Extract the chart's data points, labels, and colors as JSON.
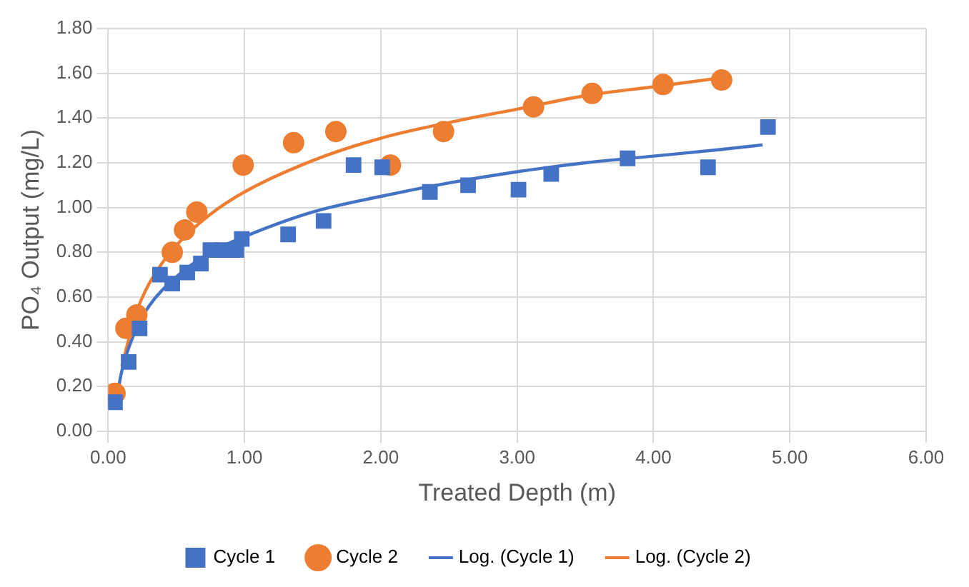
{
  "chart_data": {
    "type": "scatter",
    "xlabel": "Treated Depth (m)",
    "ylabel": "PO₄ Output (mg/L)",
    "xlim": [
      0,
      6
    ],
    "ylim": [
      0,
      1.8
    ],
    "xticks": [
      {
        "value": 0,
        "label": "0.00"
      },
      {
        "value": 1,
        "label": "1.00"
      },
      {
        "value": 2,
        "label": "2.00"
      },
      {
        "value": 3,
        "label": "3.00"
      },
      {
        "value": 4,
        "label": "4.00"
      },
      {
        "value": 5,
        "label": "5.00"
      },
      {
        "value": 6,
        "label": "6.00"
      }
    ],
    "yticks": [
      {
        "value": 0,
        "label": "0.00"
      },
      {
        "value": 0.2,
        "label": "0.20"
      },
      {
        "value": 0.4,
        "label": "0.40"
      },
      {
        "value": 0.6,
        "label": "0.60"
      },
      {
        "value": 0.8,
        "label": "0.80"
      },
      {
        "value": 1,
        "label": "1.00"
      },
      {
        "value": 1.2,
        "label": "1.20"
      },
      {
        "value": 1.4,
        "label": "1.40"
      },
      {
        "value": 1.6,
        "label": "1.60"
      },
      {
        "value": 1.8,
        "label": "1.80"
      }
    ],
    "grid": true,
    "legend": "bottom",
    "series": [
      {
        "name": "Cycle 1",
        "marker": "square",
        "color": "#4472c4",
        "x": [
          0.05,
          0.15,
          0.23,
          0.38,
          0.47,
          0.58,
          0.68,
          0.75,
          0.84,
          0.94,
          0.98,
          1.32,
          1.58,
          1.8,
          2.01,
          2.36,
          2.64,
          3.01,
          3.25,
          3.81,
          4.4,
          4.84
        ],
        "values": [
          0.13,
          0.31,
          0.46,
          0.7,
          0.66,
          0.71,
          0.75,
          0.81,
          0.81,
          0.81,
          0.86,
          0.88,
          0.94,
          1.19,
          1.18,
          1.07,
          1.1,
          1.08,
          1.15,
          1.22,
          1.18,
          1.36
        ]
      },
      {
        "name": "Cycle 2",
        "marker": "circle",
        "color": "#ed7d31",
        "x": [
          0.05,
          0.13,
          0.21,
          0.47,
          0.56,
          0.65,
          0.99,
          1.36,
          1.67,
          2.07,
          2.46,
          3.12,
          3.55,
          4.07,
          4.5
        ],
        "values": [
          0.17,
          0.46,
          0.52,
          0.8,
          0.9,
          0.98,
          1.19,
          1.29,
          1.34,
          1.19,
          1.34,
          1.45,
          1.51,
          1.55,
          1.57
        ]
      },
      {
        "name": "Log. (Cycle 1)",
        "type": "line",
        "marker": "none",
        "line_style": "solid",
        "color": "#4472c4",
        "x": [
          0.06,
          0.1,
          0.2,
          0.3,
          0.5,
          0.75,
          1,
          1.5,
          2,
          2.5,
          3,
          3.5,
          4,
          4.5,
          4.8
        ],
        "values": [
          0.14,
          0.27,
          0.45,
          0.56,
          0.69,
          0.8,
          0.87,
          0.98,
          1.05,
          1.11,
          1.16,
          1.2,
          1.23,
          1.26,
          1.28
        ]
      },
      {
        "name": "Log. (Cycle 2)",
        "type": "line",
        "marker": "none",
        "line_style": "solid",
        "color": "#ed7d31",
        "x": [
          0.1,
          0.2,
          0.3,
          0.5,
          0.75,
          1,
          1.5,
          2,
          2.5,
          3,
          3.5,
          4,
          4.5
        ],
        "values": [
          0.29,
          0.52,
          0.66,
          0.83,
          0.97,
          1.07,
          1.21,
          1.31,
          1.38,
          1.44,
          1.5,
          1.54,
          1.58
        ]
      }
    ]
  }
}
